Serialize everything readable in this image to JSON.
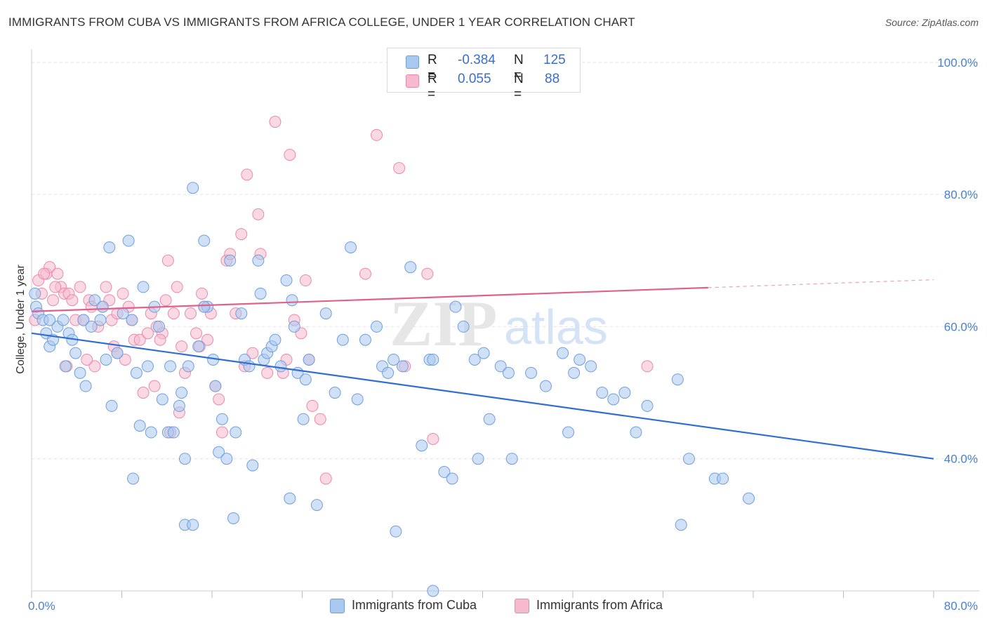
{
  "title": "IMMIGRANTS FROM CUBA VS IMMIGRANTS FROM AFRICA COLLEGE, UNDER 1 YEAR CORRELATION CHART",
  "source": "Source: ZipAtlas.com",
  "watermark": {
    "zip": "ZIP",
    "atlas": "atlas"
  },
  "legend": {
    "rows": [
      {
        "r_key": "R =",
        "r_value": "-0.384",
        "n_key": "N =",
        "n_value": "125"
      },
      {
        "r_key": "R =",
        "r_value": "0.055",
        "n_key": "N =",
        "n_value": "88"
      }
    ]
  },
  "bottom_legend": {
    "cuba": "Immigrants from Cuba",
    "africa": "Immigrants from Africa"
  },
  "colors": {
    "cuba_fill": "#a9c8f0",
    "cuba_stroke": "#6f9fdc",
    "cuba_line": "#2f6fd1",
    "africa_fill": "#f6b9cd",
    "africa_stroke": "#e98aab",
    "africa_line": "#e0618e"
  },
  "chart_data": {
    "type": "scatter",
    "title": "IMMIGRANTS FROM CUBA VS IMMIGRANTS FROM AFRICA COLLEGE, UNDER 1 YEAR CORRELATION CHART",
    "xlabel": "",
    "ylabel": "College, Under 1 year",
    "xlim": [
      0,
      80
    ],
    "ylim": [
      20,
      102
    ],
    "x_tick_labels": [
      "0.0%",
      "80.0%"
    ],
    "y_ticks": [
      40,
      60,
      80,
      100
    ],
    "y_tick_labels": [
      "40.0%",
      "60.0%",
      "80.0%",
      "100.0%"
    ],
    "grid": true,
    "series": [
      {
        "name": "Immigrants from Cuba",
        "R": -0.384,
        "N": 125,
        "trend": {
          "x": [
            0,
            80
          ],
          "y": [
            59,
            40
          ]
        },
        "points": [
          [
            0.3,
            65
          ],
          [
            0.4,
            63
          ],
          [
            0.6,
            62
          ],
          [
            1.0,
            61
          ],
          [
            1.3,
            59
          ],
          [
            1.6,
            57
          ],
          [
            1.9,
            58
          ],
          [
            2.3,
            60
          ],
          [
            2.8,
            61
          ],
          [
            3.0,
            54
          ],
          [
            3.3,
            59
          ],
          [
            3.6,
            58
          ],
          [
            3.9,
            56
          ],
          [
            4.3,
            53
          ],
          [
            4.8,
            51
          ],
          [
            4.6,
            61
          ],
          [
            5.3,
            60
          ],
          [
            5.6,
            64
          ],
          [
            6.1,
            61
          ],
          [
            6.3,
            63
          ],
          [
            6.6,
            55
          ],
          [
            7.1,
            48
          ],
          [
            6.9,
            72
          ],
          [
            7.6,
            56
          ],
          [
            8.1,
            62
          ],
          [
            8.6,
            73
          ],
          [
            8.9,
            61
          ],
          [
            9.3,
            53
          ],
          [
            9.6,
            45
          ],
          [
            9.9,
            66
          ],
          [
            10.3,
            54
          ],
          [
            10.6,
            44
          ],
          [
            10.9,
            63
          ],
          [
            11.3,
            60
          ],
          [
            11.6,
            49
          ],
          [
            12.1,
            44
          ],
          [
            12.3,
            54
          ],
          [
            12.6,
            44
          ],
          [
            13.1,
            48
          ],
          [
            13.3,
            50
          ],
          [
            13.6,
            40
          ],
          [
            13.9,
            54
          ],
          [
            14.3,
            81
          ],
          [
            14.8,
            57
          ],
          [
            15.3,
            73
          ],
          [
            15.6,
            63
          ],
          [
            16.1,
            55
          ],
          [
            16.3,
            51
          ],
          [
            16.6,
            41
          ],
          [
            16.9,
            46
          ],
          [
            17.3,
            40
          ],
          [
            17.6,
            70
          ],
          [
            18.1,
            44
          ],
          [
            18.6,
            62
          ],
          [
            18.9,
            55
          ],
          [
            19.3,
            54
          ],
          [
            19.6,
            39
          ],
          [
            20.1,
            70
          ],
          [
            20.3,
            65
          ],
          [
            20.6,
            55
          ],
          [
            20.9,
            56
          ],
          [
            21.3,
            57
          ],
          [
            21.6,
            58
          ],
          [
            22.1,
            54
          ],
          [
            22.6,
            67
          ],
          [
            23.1,
            64
          ],
          [
            23.3,
            60
          ],
          [
            23.6,
            53
          ],
          [
            24.1,
            46
          ],
          [
            24.3,
            52
          ],
          [
            24.6,
            55
          ],
          [
            26.1,
            62
          ],
          [
            26.9,
            50
          ],
          [
            27.6,
            58
          ],
          [
            28.3,
            72
          ],
          [
            28.9,
            49
          ],
          [
            29.6,
            58
          ],
          [
            30.6,
            60
          ],
          [
            31.1,
            54
          ],
          [
            31.6,
            53
          ],
          [
            32.1,
            55
          ],
          [
            32.9,
            54
          ],
          [
            33.6,
            69
          ],
          [
            34.6,
            42
          ],
          [
            35.3,
            55
          ],
          [
            35.6,
            55
          ],
          [
            36.6,
            38
          ],
          [
            37.3,
            37
          ],
          [
            37.6,
            63
          ],
          [
            38.3,
            60
          ],
          [
            39.3,
            55
          ],
          [
            39.6,
            40
          ],
          [
            40.1,
            56
          ],
          [
            40.6,
            46
          ],
          [
            41.6,
            54
          ],
          [
            42.3,
            53
          ],
          [
            42.6,
            40
          ],
          [
            44.3,
            53
          ],
          [
            45.6,
            51
          ],
          [
            47.1,
            56
          ],
          [
            47.6,
            44
          ],
          [
            48.1,
            53
          ],
          [
            48.6,
            55
          ],
          [
            49.6,
            54
          ],
          [
            50.6,
            50
          ],
          [
            51.6,
            49
          ],
          [
            52.6,
            50
          ],
          [
            53.6,
            44
          ],
          [
            54.6,
            48
          ],
          [
            57.3,
            52
          ],
          [
            58.3,
            40
          ],
          [
            60.6,
            37
          ],
          [
            61.3,
            37
          ],
          [
            63.6,
            34
          ],
          [
            13.6,
            30
          ],
          [
            14.3,
            30
          ],
          [
            17.9,
            31
          ],
          [
            22.9,
            34
          ],
          [
            25.3,
            33
          ],
          [
            32.3,
            29
          ],
          [
            35.6,
            20
          ],
          [
            57.6,
            30
          ],
          [
            9.0,
            37
          ],
          [
            15.3,
            63
          ],
          [
            1.6,
            61
          ]
        ]
      },
      {
        "name": "Immigrants from Africa",
        "R": 0.055,
        "N": 88,
        "trend": {
          "x": [
            0,
            60
          ],
          "y": [
            62.3,
            65.9
          ]
        },
        "trend_dashed": {
          "x": [
            60,
            80
          ],
          "y": [
            65.9,
            67.1
          ]
        },
        "points": [
          [
            0.3,
            61
          ],
          [
            0.6,
            67
          ],
          [
            0.9,
            65
          ],
          [
            1.3,
            68
          ],
          [
            1.6,
            69
          ],
          [
            1.9,
            64
          ],
          [
            2.3,
            68
          ],
          [
            2.6,
            66
          ],
          [
            2.9,
            65
          ],
          [
            3.3,
            65
          ],
          [
            3.6,
            64
          ],
          [
            3.9,
            61
          ],
          [
            4.3,
            66
          ],
          [
            4.6,
            61
          ],
          [
            5.1,
            64
          ],
          [
            5.3,
            63
          ],
          [
            5.6,
            54
          ],
          [
            5.9,
            60
          ],
          [
            6.3,
            63
          ],
          [
            6.6,
            66
          ],
          [
            7.1,
            61
          ],
          [
            7.3,
            57
          ],
          [
            7.6,
            56
          ],
          [
            8.1,
            65
          ],
          [
            8.6,
            63
          ],
          [
            8.9,
            61
          ],
          [
            9.1,
            58
          ],
          [
            9.6,
            58
          ],
          [
            9.9,
            50
          ],
          [
            10.3,
            59
          ],
          [
            10.6,
            62
          ],
          [
            11.1,
            60
          ],
          [
            11.6,
            59
          ],
          [
            11.9,
            64
          ],
          [
            12.1,
            70
          ],
          [
            12.6,
            62
          ],
          [
            12.9,
            66
          ],
          [
            13.3,
            57
          ],
          [
            13.6,
            53
          ],
          [
            14.1,
            62
          ],
          [
            14.6,
            59
          ],
          [
            15.1,
            65
          ],
          [
            15.3,
            63
          ],
          [
            15.6,
            58
          ],
          [
            15.9,
            62
          ],
          [
            16.3,
            51
          ],
          [
            16.6,
            49
          ],
          [
            16.9,
            44
          ],
          [
            17.3,
            70
          ],
          [
            17.6,
            71
          ],
          [
            18.1,
            62
          ],
          [
            18.6,
            74
          ],
          [
            19.1,
            83
          ],
          [
            19.6,
            56
          ],
          [
            20.1,
            77
          ],
          [
            20.3,
            71
          ],
          [
            20.9,
            53
          ],
          [
            21.6,
            91
          ],
          [
            22.3,
            53
          ],
          [
            22.9,
            86
          ],
          [
            23.3,
            61
          ],
          [
            23.9,
            59
          ],
          [
            24.3,
            67
          ],
          [
            24.6,
            55
          ],
          [
            25.6,
            46
          ],
          [
            26.1,
            37
          ],
          [
            29.6,
            68
          ],
          [
            30.6,
            89
          ],
          [
            32.6,
            84
          ],
          [
            33.1,
            54
          ],
          [
            35.1,
            68
          ],
          [
            35.6,
            43
          ],
          [
            54.6,
            54
          ],
          [
            6.9,
            64
          ],
          [
            3.1,
            54
          ],
          [
            8.3,
            55
          ],
          [
            10.9,
            51
          ],
          [
            13.1,
            47
          ],
          [
            12.3,
            44
          ],
          [
            11.4,
            58
          ],
          [
            2.1,
            66
          ],
          [
            1.1,
            68
          ],
          [
            14.9,
            57
          ],
          [
            18.9,
            54
          ],
          [
            22.6,
            55
          ],
          [
            24.9,
            48
          ],
          [
            4.9,
            55
          ],
          [
            7.6,
            62
          ]
        ]
      }
    ]
  }
}
